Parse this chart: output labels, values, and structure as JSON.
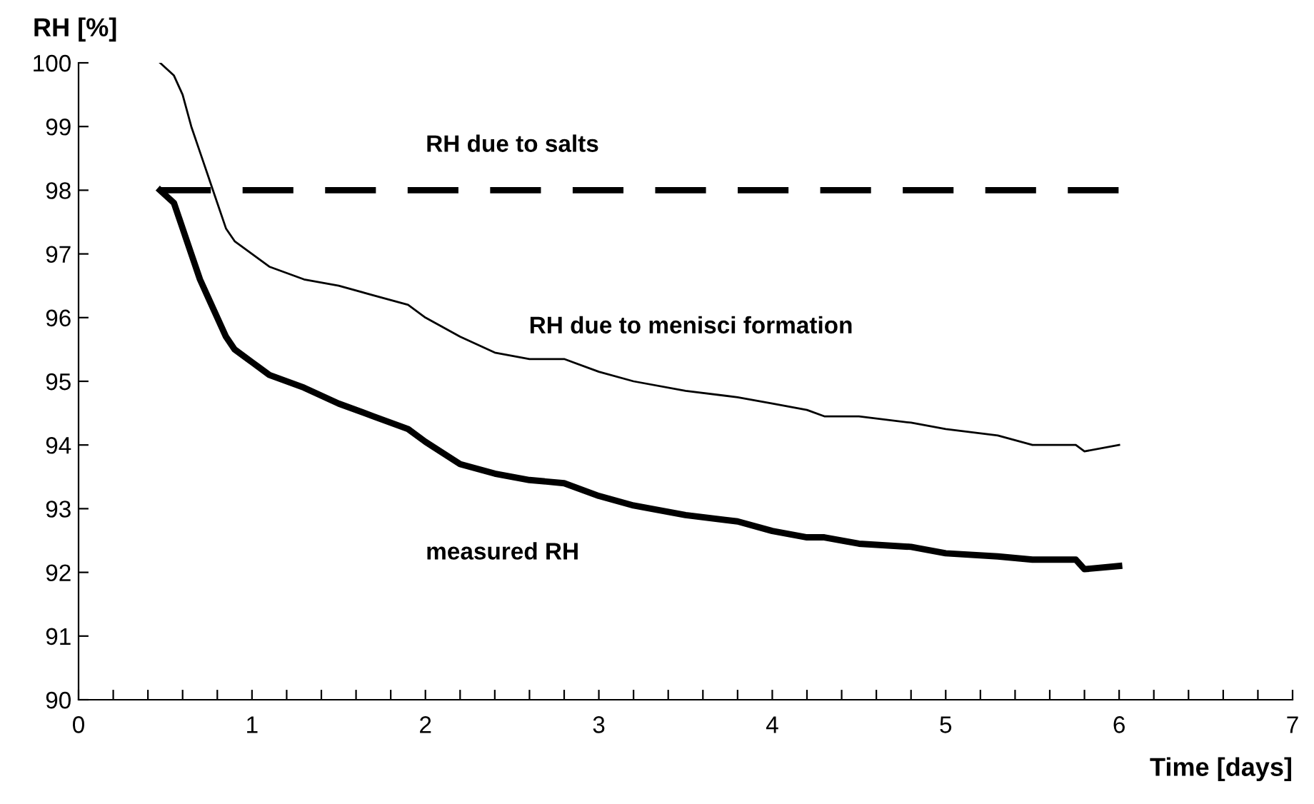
{
  "chart_data": {
    "type": "line",
    "xlabel": "Time [days]",
    "ylabel": "RH [%]",
    "xlim": [
      0,
      7
    ],
    "ylim": [
      90,
      100
    ],
    "xticks": [
      0,
      {
        "value": 0.2,
        "label": null
      },
      {
        "value": 0.4,
        "label": null
      },
      {
        "value": 0.6,
        "label": null
      },
      {
        "value": 0.8,
        "label": null
      },
      1,
      {
        "value": 1.2,
        "label": null
      },
      {
        "value": 1.4,
        "label": null
      },
      {
        "value": 1.6,
        "label": null
      },
      {
        "value": 1.8,
        "label": null
      },
      2,
      {
        "value": 2.2,
        "label": null
      },
      {
        "value": 2.4,
        "label": null
      },
      {
        "value": 2.6,
        "label": null
      },
      {
        "value": 2.8,
        "label": null
      },
      3,
      {
        "value": 3.2,
        "label": null
      },
      {
        "value": 3.4,
        "label": null
      },
      {
        "value": 3.6,
        "label": null
      },
      {
        "value": 3.8,
        "label": null
      },
      4,
      {
        "value": 4.2,
        "label": null
      },
      {
        "value": 4.4,
        "label": null
      },
      {
        "value": 4.6,
        "label": null
      },
      {
        "value": 4.8,
        "label": null
      },
      5,
      {
        "value": 5.2,
        "label": null
      },
      {
        "value": 5.4,
        "label": null
      },
      {
        "value": 5.6,
        "label": null
      },
      {
        "value": 5.8,
        "label": null
      },
      6,
      {
        "value": 6.2,
        "label": null
      },
      {
        "value": 6.4,
        "label": null
      },
      {
        "value": 6.6,
        "label": null
      },
      {
        "value": 6.8,
        "label": null
      },
      7
    ],
    "yticks": [
      90,
      91,
      92,
      93,
      94,
      95,
      96,
      97,
      98,
      99,
      100
    ],
    "grid": false,
    "legend": false,
    "marker": "none",
    "series": [
      {
        "name": "RH due to salts",
        "color": "#000000",
        "line_style": "dashed",
        "x": [
          0.47,
          6.0
        ],
        "values": [
          98.0,
          98.0
        ]
      },
      {
        "name": "RH due to menisci formation",
        "color": "#000000",
        "line_style": "solid",
        "x": [
          0.47,
          0.55,
          0.6,
          0.65,
          0.7,
          0.75,
          0.8,
          0.85,
          0.9,
          1.0,
          1.1,
          1.3,
          1.5,
          1.7,
          1.9,
          2.0,
          2.2,
          2.4,
          2.6,
          2.8,
          3.0,
          3.2,
          3.5,
          3.8,
          4.0,
          4.2,
          4.3,
          4.5,
          4.8,
          5.0,
          5.3,
          5.5,
          5.75,
          5.8,
          6.0
        ],
        "values": [
          100.0,
          99.8,
          99.5,
          99.0,
          98.6,
          98.2,
          97.8,
          97.4,
          97.2,
          97.0,
          96.8,
          96.6,
          96.5,
          96.35,
          96.2,
          96.0,
          95.7,
          95.45,
          95.35,
          95.35,
          95.15,
          95.0,
          94.85,
          94.75,
          94.65,
          94.55,
          94.45,
          94.45,
          94.35,
          94.25,
          94.15,
          94.0,
          94.0,
          93.9,
          94.0
        ]
      },
      {
        "name": "measured RH",
        "color": "#000000",
        "line_style": "solid",
        "x": [
          0.47,
          0.55,
          0.6,
          0.65,
          0.7,
          0.75,
          0.8,
          0.85,
          0.9,
          1.0,
          1.1,
          1.3,
          1.5,
          1.7,
          1.9,
          2.0,
          2.2,
          2.4,
          2.6,
          2.8,
          3.0,
          3.2,
          3.5,
          3.8,
          4.0,
          4.2,
          4.3,
          4.5,
          4.8,
          5.0,
          5.3,
          5.5,
          5.75,
          5.8,
          6.0
        ],
        "values": [
          98.0,
          97.8,
          97.4,
          97.0,
          96.6,
          96.3,
          96.0,
          95.7,
          95.5,
          95.3,
          95.1,
          94.9,
          94.65,
          94.45,
          94.25,
          94.05,
          93.7,
          93.55,
          93.45,
          93.4,
          93.2,
          93.05,
          92.9,
          92.8,
          92.65,
          92.55,
          92.55,
          92.45,
          92.4,
          92.3,
          92.25,
          92.2,
          92.2,
          92.05,
          92.1
        ]
      }
    ]
  }
}
